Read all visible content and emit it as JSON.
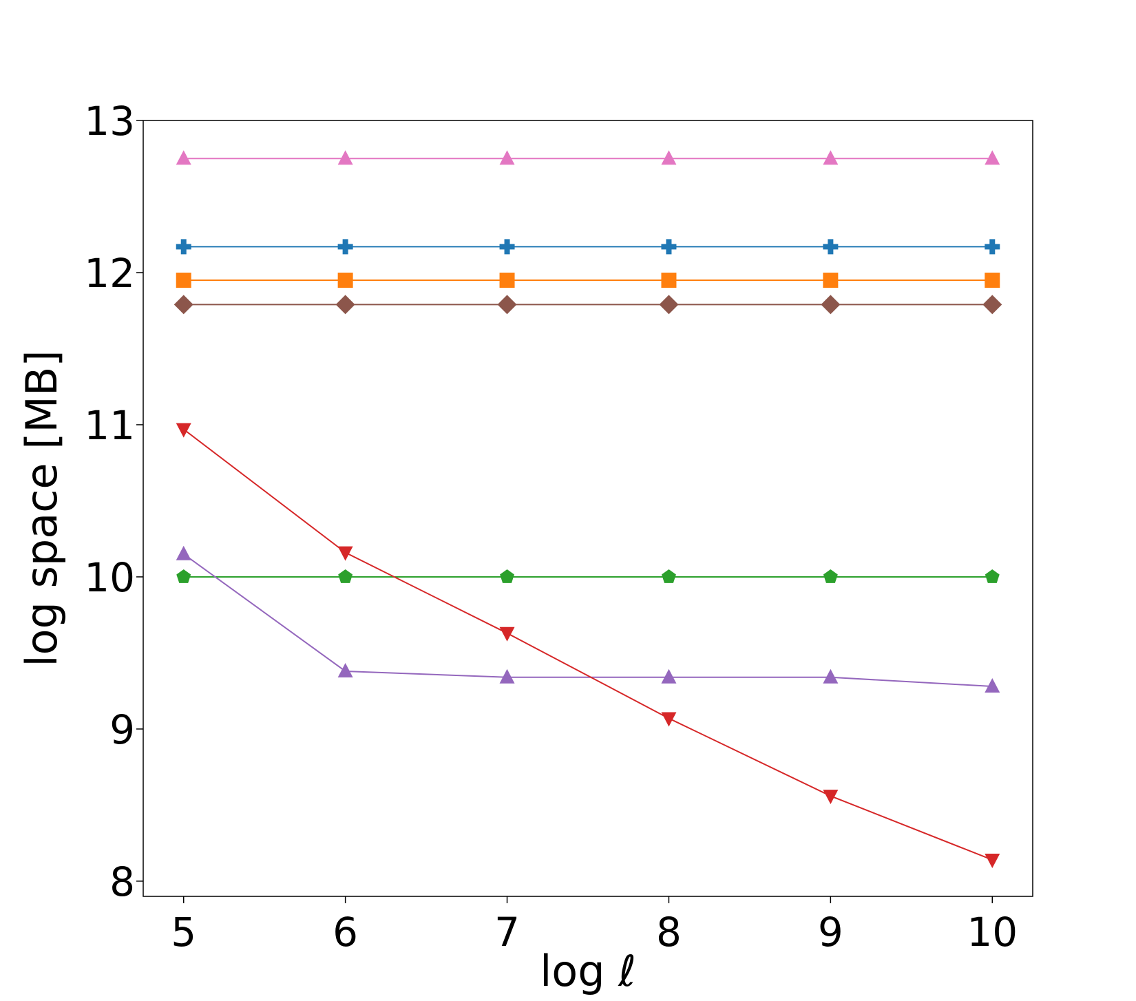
{
  "chart_data": {
    "type": "line",
    "title": "",
    "xlabel": "log ℓ",
    "ylabel": "log space [MB]",
    "x": [
      5,
      6,
      7,
      8,
      9,
      10
    ],
    "xlim": [
      4.75,
      10.25
    ],
    "ylim": [
      7.9,
      13.0
    ],
    "xticks": [
      "5",
      "6",
      "7",
      "8",
      "9",
      "10"
    ],
    "yticks": [
      "8",
      "9",
      "10",
      "11",
      "12",
      "13"
    ],
    "grid": false,
    "legend": "none",
    "series": [
      {
        "color": "#e377c2",
        "marker": "triangle-up",
        "values": [
          12.75,
          12.75,
          12.75,
          12.75,
          12.75,
          12.75
        ]
      },
      {
        "color": "#1f77b4",
        "marker": "plus",
        "values": [
          12.17,
          12.17,
          12.17,
          12.17,
          12.17,
          12.17
        ]
      },
      {
        "color": "#ff7f0e",
        "marker": "square",
        "values": [
          11.95,
          11.95,
          11.95,
          11.95,
          11.95,
          11.95
        ]
      },
      {
        "color": "#8c564b",
        "marker": "diamond",
        "values": [
          11.79,
          11.79,
          11.79,
          11.79,
          11.79,
          11.79
        ]
      },
      {
        "color": "#2ca02c",
        "marker": "pentagon",
        "values": [
          10.0,
          10.0,
          10.0,
          10.0,
          10.0,
          10.0
        ]
      },
      {
        "color": "#9467bd",
        "marker": "triangle-up",
        "values": [
          10.15,
          9.38,
          9.34,
          9.34,
          9.34,
          9.28
        ]
      },
      {
        "color": "#d62728",
        "marker": "triangle-down",
        "values": [
          10.97,
          10.16,
          9.63,
          9.07,
          8.56,
          8.14
        ]
      }
    ]
  }
}
